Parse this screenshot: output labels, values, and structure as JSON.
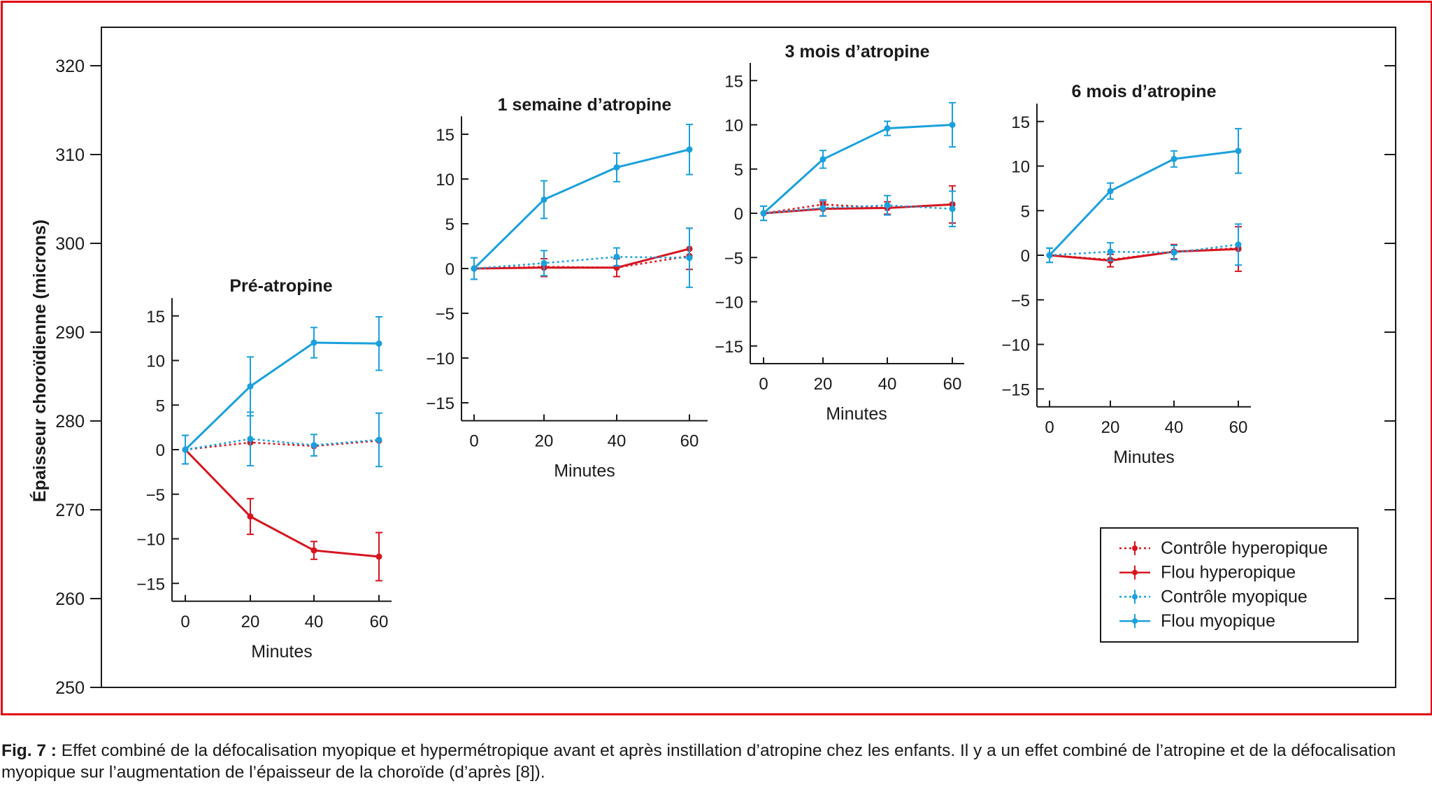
{
  "chart_data": {
    "type": "line",
    "outer_axis": {
      "ylabel": "Épaisseur choroïdienne (microns)",
      "ylim": [
        250,
        322
      ],
      "ticks": [
        250,
        260,
        270,
        280,
        290,
        300,
        310,
        320
      ]
    },
    "legend": {
      "position": "bottom-right",
      "entries": [
        "Contrôle hyperopique",
        "Flou hyperopique",
        "Contrôle myopique",
        "Flou myopique"
      ]
    },
    "colors": {
      "Contrôle hyperopique": "#d7141f",
      "Flou hyperopique": "#d7141f",
      "Contrôle myopique": "#1aa0dd",
      "Flou myopique": "#1aa0dd"
    },
    "panels": [
      {
        "title": "Pré-atropine",
        "xlabel": "Minutes",
        "x": [
          0,
          20,
          40,
          60
        ],
        "ylim": [
          -17,
          17
        ],
        "yticks": [
          -15,
          -10,
          -5,
          0,
          5,
          10,
          15
        ],
        "series": [
          {
            "name": "Contrôle hyperopique",
            "style": "dotted",
            "values": [
              0,
              0.8,
              0.4,
              1.0
            ],
            "err": [
              0,
              0,
              0,
              0
            ]
          },
          {
            "name": "Flou hyperopique",
            "style": "solid",
            "values": [
              0,
              -7.5,
              -11.3,
              -12.0
            ],
            "err": [
              0,
              2.0,
              1.0,
              2.7
            ]
          },
          {
            "name": "Contrôle myopique",
            "style": "dotted",
            "values": [
              0,
              1.2,
              0.5,
              1.1
            ],
            "err": [
              1.6,
              3.0,
              1.2,
              3.0
            ]
          },
          {
            "name": "Flou myopique",
            "style": "solid",
            "values": [
              0,
              7.1,
              12.0,
              11.9
            ],
            "err": [
              1.6,
              3.3,
              1.7,
              3.0
            ]
          }
        ]
      },
      {
        "title": "1 semaine d’atropine",
        "xlabel": "Minutes",
        "x": [
          0,
          20,
          40,
          60
        ],
        "ylim": [
          -17,
          17
        ],
        "yticks": [
          -15,
          -10,
          -5,
          0,
          5,
          10,
          15
        ],
        "series": [
          {
            "name": "Contrôle hyperopique",
            "style": "dotted",
            "values": [
              0,
              0.2,
              0.1,
              1.4
            ],
            "err": [
              0,
              0,
              0,
              0
            ]
          },
          {
            "name": "Flou hyperopique",
            "style": "solid",
            "values": [
              0,
              0.1,
              0.1,
              2.2
            ],
            "err": [
              0,
              1.0,
              1.0,
              2.3
            ]
          },
          {
            "name": "Contrôle myopique",
            "style": "dotted",
            "values": [
              0,
              0.6,
              1.3,
              1.2
            ],
            "err": [
              1.2,
              1.4,
              1.0,
              3.3
            ]
          },
          {
            "name": "Flou myopique",
            "style": "solid",
            "values": [
              0,
              7.7,
              11.3,
              13.3
            ],
            "err": [
              1.2,
              2.1,
              1.6,
              2.8
            ]
          }
        ]
      },
      {
        "title": "3 mois d’atropine",
        "xlabel": "Minutes",
        "x": [
          0,
          20,
          40,
          60
        ],
        "ylim": [
          -17,
          17
        ],
        "yticks": [
          -15,
          -10,
          -5,
          0,
          5,
          10,
          15
        ],
        "series": [
          {
            "name": "Contrôle hyperopique",
            "style": "dotted",
            "values": [
              0,
              1.0,
              0.6,
              1.0
            ],
            "err": [
              0,
              0,
              0,
              0
            ]
          },
          {
            "name": "Flou hyperopique",
            "style": "solid",
            "values": [
              0,
              0.5,
              0.6,
              1.0
            ],
            "err": [
              0,
              0.8,
              0.7,
              2.1
            ]
          },
          {
            "name": "Contrôle myopique",
            "style": "dotted",
            "values": [
              0,
              0.6,
              0.9,
              0.5
            ],
            "err": [
              0.8,
              0.9,
              1.1,
              2.0
            ]
          },
          {
            "name": "Flou myopique",
            "style": "solid",
            "values": [
              0,
              6.1,
              9.6,
              10.0
            ],
            "err": [
              0.8,
              1.0,
              0.8,
              2.5
            ]
          }
        ]
      },
      {
        "title": "6 mois d’atropine",
        "xlabel": "Minutes",
        "x": [
          0,
          20,
          40,
          60
        ],
        "ylim": [
          -17,
          17
        ],
        "yticks": [
          -15,
          -10,
          -5,
          0,
          5,
          10,
          15
        ],
        "series": [
          {
            "name": "Contrôle hyperopique",
            "style": "dotted",
            "values": [
              0,
              -0.5,
              0.4,
              0.8
            ],
            "err": [
              0,
              0,
              0,
              0
            ]
          },
          {
            "name": "Flou hyperopique",
            "style": "solid",
            "values": [
              0,
              -0.6,
              0.4,
              0.7
            ],
            "err": [
              0,
              0.7,
              0.8,
              2.5
            ]
          },
          {
            "name": "Contrôle myopique",
            "style": "dotted",
            "values": [
              0,
              0.4,
              0.3,
              1.2
            ],
            "err": [
              0.8,
              1.0,
              0.8,
              2.3
            ]
          },
          {
            "name": "Flou myopique",
            "style": "solid",
            "values": [
              0,
              7.2,
              10.8,
              11.7
            ],
            "err": [
              0.8,
              0.9,
              0.9,
              2.5
            ]
          }
        ]
      }
    ]
  },
  "caption": {
    "label": "Fig. 7 :",
    "text": " Effet combiné de la défocalisation myopique et hypermétropique avant et après instillation d’atropine chez les enfants. Il y a un effet combiné de l’atropine et de la défocalisation myopique sur l’augmentation de l’épaisseur de la choroïde (d’après [8])."
  }
}
